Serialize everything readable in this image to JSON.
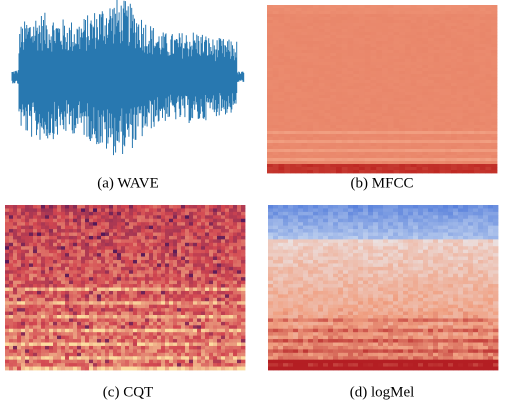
{
  "panels": [
    {
      "caption": "(a) WAVE"
    },
    {
      "caption": "(b) MFCC"
    },
    {
      "caption": "(c) CQT"
    },
    {
      "caption": "(d) logMel"
    }
  ]
}
